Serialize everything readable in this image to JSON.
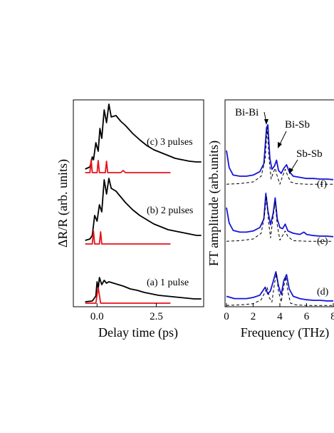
{
  "colors": {
    "black": "#000000",
    "red": "#e8101a",
    "blue": "#1515d8",
    "dashed": "#000000"
  },
  "chart_data": [
    {
      "type": "line",
      "xlabel": "Delay time (ps)",
      "ylabel": "ΔR/R (arb. units)",
      "xlim": [
        -1.0,
        4.5
      ],
      "xticks": [
        "0.0",
        "2.5"
      ],
      "xtick_values": [
        0.0,
        2.5
      ],
      "series": [
        {
          "name": "(c) 3 pulses",
          "offset": 2,
          "color": "black",
          "x": [
            -0.5,
            -0.3,
            -0.2,
            -0.15,
            -0.05,
            0.05,
            0.12,
            0.2,
            0.3,
            0.4,
            0.5,
            0.6,
            0.8,
            1.0,
            1.2,
            1.5,
            1.8,
            2.1,
            2.4,
            2.7,
            3.0,
            3.3,
            3.6,
            3.9,
            4.2,
            4.4
          ],
          "y": [
            0.05,
            0.08,
            0.22,
            0.18,
            0.42,
            0.3,
            0.62,
            0.48,
            0.88,
            0.7,
            0.96,
            0.78,
            0.8,
            0.72,
            0.66,
            0.55,
            0.46,
            0.38,
            0.32,
            0.28,
            0.24,
            0.2,
            0.18,
            0.16,
            0.15,
            0.15
          ]
        },
        {
          "name": "(c) pulse train",
          "offset": 2,
          "color": "red",
          "x": [
            -0.5,
            -0.3,
            -0.25,
            -0.2,
            -0.15,
            0.0,
            0.05,
            0.1,
            0.2,
            0.35,
            0.4,
            0.45,
            0.6,
            1.0,
            1.1,
            1.2,
            1.4,
            3.1
          ],
          "y": [
            0.0,
            0.0,
            0.18,
            0.0,
            0.0,
            0.0,
            0.17,
            0.0,
            0.0,
            0.0,
            0.16,
            0.0,
            0.0,
            0.0,
            0.03,
            0.0,
            0.0,
            0.0
          ]
        },
        {
          "name": "(b) 2 pulses",
          "offset": 1,
          "color": "black",
          "x": [
            -0.5,
            -0.3,
            -0.2,
            -0.1,
            0.0,
            0.1,
            0.2,
            0.3,
            0.4,
            0.5,
            0.6,
            0.8,
            1.0,
            1.2,
            1.5,
            1.8,
            2.1,
            2.4,
            2.7,
            3.0,
            3.3,
            3.6,
            3.9,
            4.2,
            4.4
          ],
          "y": [
            0.05,
            0.07,
            0.12,
            0.4,
            0.32,
            0.55,
            0.45,
            0.9,
            0.7,
            0.92,
            0.78,
            0.74,
            0.66,
            0.58,
            0.48,
            0.4,
            0.34,
            0.28,
            0.24,
            0.2,
            0.18,
            0.16,
            0.14,
            0.12,
            0.12
          ]
        },
        {
          "name": "(b) pulse train",
          "offset": 1,
          "color": "red",
          "x": [
            -0.5,
            -0.2,
            -0.15,
            -0.1,
            0.1,
            0.15,
            0.2,
            0.5,
            3.1
          ],
          "y": [
            0.0,
            0.0,
            0.18,
            0.0,
            0.0,
            0.17,
            0.0,
            0.0,
            0.0
          ]
        },
        {
          "name": "(a) 1 pulse",
          "offset": 0,
          "color": "black",
          "x": [
            -0.5,
            -0.2,
            -0.05,
            0.0,
            0.05,
            0.1,
            0.2,
            0.3,
            0.4,
            0.5,
            0.7,
            0.9,
            1.1,
            1.4,
            1.7,
            2.0,
            2.3,
            2.6,
            2.9,
            3.2,
            3.5,
            3.8,
            4.1,
            4.4
          ],
          "y": [
            0.02,
            0.03,
            0.1,
            0.3,
            0.2,
            0.36,
            0.26,
            0.32,
            0.28,
            0.3,
            0.28,
            0.26,
            0.24,
            0.2,
            0.18,
            0.15,
            0.13,
            0.11,
            0.1,
            0.09,
            0.08,
            0.07,
            0.06,
            0.06
          ]
        },
        {
          "name": "(a) pulse",
          "offset": 0,
          "color": "red",
          "x": [
            -0.5,
            -0.05,
            0.05,
            0.15,
            3.1
          ],
          "y": [
            0.0,
            0.0,
            0.22,
            0.0,
            0.0
          ]
        }
      ],
      "labels": [
        "(c) 3 pulses",
        "(b) 2 pulses",
        "(a) 1 pulse"
      ]
    },
    {
      "type": "line",
      "xlabel": "Frequency (THz)",
      "ylabel": "FT amplitude (arb.units)",
      "xlim": [
        0,
        8
      ],
      "xticks": [
        "0",
        "2",
        "4",
        "6",
        "8"
      ],
      "xtick_values": [
        0,
        2,
        4,
        6,
        8
      ],
      "annotations": [
        "Bi-Bi",
        "Bi-Sb",
        "Sb-Sb"
      ],
      "series": [
        {
          "name": "(f)",
          "offset": 2,
          "color": "blue",
          "x": [
            0.0,
            0.2,
            0.5,
            1.0,
            1.5,
            2.0,
            2.5,
            2.8,
            3.0,
            3.1,
            3.25,
            3.4,
            3.6,
            3.75,
            3.9,
            4.1,
            4.3,
            4.5,
            4.7,
            5.0,
            5.5,
            6.0,
            6.5,
            7.0,
            7.5,
            8.0
          ],
          "y": [
            0.55,
            0.25,
            0.12,
            0.1,
            0.1,
            0.12,
            0.18,
            0.32,
            0.95,
            1.0,
            0.42,
            0.22,
            0.28,
            0.38,
            0.2,
            0.15,
            0.24,
            0.3,
            0.18,
            0.1,
            0.08,
            0.06,
            0.06,
            0.05,
            0.05,
            0.04
          ]
        },
        {
          "name": "(f) fit",
          "offset": 2,
          "color": "dashed",
          "x": [
            0.0,
            1.0,
            2.0,
            2.6,
            2.9,
            3.05,
            3.2,
            3.35,
            3.5,
            3.65,
            3.8,
            4.0,
            4.2,
            4.4,
            4.6,
            4.8,
            5.2,
            6.0,
            7.0,
            8.0
          ],
          "y": [
            -0.04,
            -0.03,
            0.0,
            0.1,
            0.4,
            0.95,
            0.38,
            0.05,
            0.16,
            0.24,
            0.1,
            -0.04,
            0.1,
            0.22,
            0.1,
            0.0,
            -0.03,
            -0.04,
            -0.04,
            -0.04
          ]
        },
        {
          "name": "(e)",
          "offset": 1,
          "color": "blue",
          "x": [
            0.0,
            0.2,
            0.5,
            1.0,
            1.5,
            2.0,
            2.5,
            2.8,
            2.95,
            3.1,
            3.3,
            3.5,
            3.65,
            3.8,
            4.0,
            4.2,
            4.4,
            4.6,
            5.0,
            5.5,
            5.8,
            6.0,
            6.5,
            7.0,
            7.5,
            8.0
          ],
          "y": [
            0.55,
            0.28,
            0.15,
            0.12,
            0.12,
            0.14,
            0.2,
            0.35,
            0.8,
            0.5,
            0.25,
            0.45,
            0.72,
            0.35,
            0.2,
            0.18,
            0.26,
            0.14,
            0.1,
            0.08,
            0.12,
            0.08,
            0.06,
            0.05,
            0.05,
            0.04
          ]
        },
        {
          "name": "(e) fit",
          "offset": 1,
          "color": "dashed",
          "x": [
            0.0,
            1.0,
            2.0,
            2.6,
            2.85,
            3.0,
            3.15,
            3.3,
            3.5,
            3.65,
            3.8,
            4.0,
            4.2,
            4.4,
            4.6,
            5.0,
            6.0,
            7.0,
            8.0
          ],
          "y": [
            -0.04,
            -0.03,
            0.0,
            0.1,
            0.42,
            0.75,
            0.3,
            0.02,
            0.4,
            0.65,
            0.25,
            -0.02,
            0.06,
            0.14,
            0.04,
            -0.03,
            -0.04,
            -0.04,
            -0.04
          ]
        },
        {
          "name": "(d)",
          "offset": 0,
          "color": "blue",
          "x": [
            0.0,
            0.3,
            0.6,
            1.0,
            1.5,
            2.0,
            2.5,
            2.9,
            3.1,
            3.3,
            3.5,
            3.7,
            3.9,
            4.1,
            4.3,
            4.5,
            4.7,
            5.0,
            5.5,
            6.0,
            6.5,
            7.0,
            7.5,
            8.0
          ],
          "y": [
            0.12,
            0.1,
            0.08,
            0.08,
            0.08,
            0.1,
            0.14,
            0.28,
            0.16,
            0.22,
            0.38,
            0.55,
            0.3,
            0.15,
            0.4,
            0.5,
            0.25,
            0.12,
            0.08,
            0.06,
            0.05,
            0.05,
            0.04,
            0.04
          ]
        },
        {
          "name": "(d) fit",
          "offset": 0,
          "color": "dashed",
          "x": [
            0.0,
            1.0,
            2.0,
            2.6,
            2.9,
            3.05,
            3.2,
            3.4,
            3.6,
            3.75,
            3.9,
            4.1,
            4.3,
            4.45,
            4.6,
            4.8,
            5.2,
            6.0,
            7.0,
            8.0
          ],
          "y": [
            -0.04,
            -0.03,
            -0.01,
            0.06,
            0.2,
            0.28,
            0.1,
            0.02,
            0.35,
            0.52,
            0.2,
            0.02,
            0.3,
            0.46,
            0.2,
            0.0,
            -0.03,
            -0.04,
            -0.04,
            -0.04
          ]
        }
      ],
      "labels": [
        "(f)",
        "(e)",
        "(d)"
      ]
    }
  ]
}
